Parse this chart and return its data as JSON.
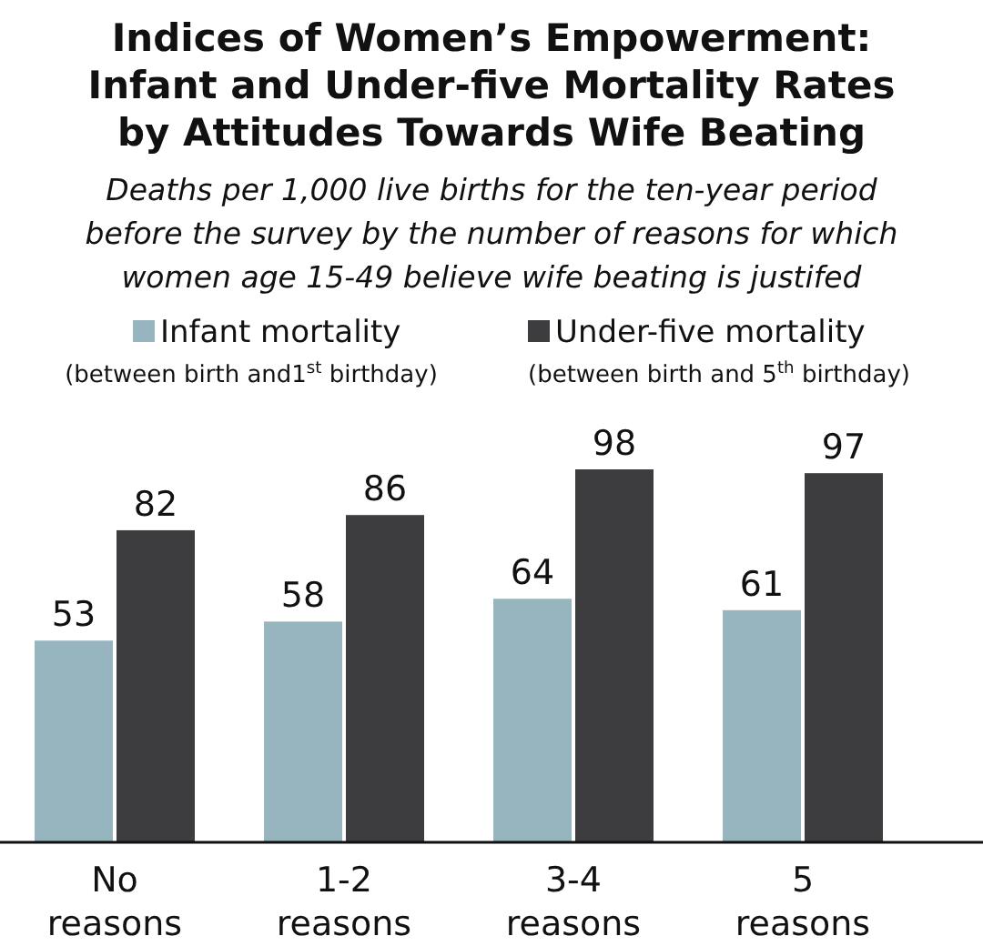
{
  "chart_data": {
    "type": "bar",
    "title": "Indices of Women’s Empowerment:\nInfant and Under-five Mortality Rates\nby Attitudes Towards Wife Beating",
    "subtitle": "Deaths per 1,000 live births for the ten-year period\nbefore the survey by the number of reasons for which\nwomen age 15-49 believe wife beating is justifed",
    "categories": [
      "No\nreasons",
      "1-2\nreasons",
      "3-4\nreasons",
      "5\nreasons"
    ],
    "series": [
      {
        "name": "Infant mortality",
        "color": "#97b5bf",
        "values": [
          53,
          58,
          64,
          61
        ]
      },
      {
        "name": "Under-five mortality",
        "color": "#3d3d40",
        "values": [
          82,
          86,
          98,
          97
        ]
      }
    ],
    "annotations": [
      "(between birth and1$^{st}$ birthday)",
      "(between birth and 5$^{th}$ birthday)"
    ],
    "data_labels": true,
    "legend": "top"
  }
}
